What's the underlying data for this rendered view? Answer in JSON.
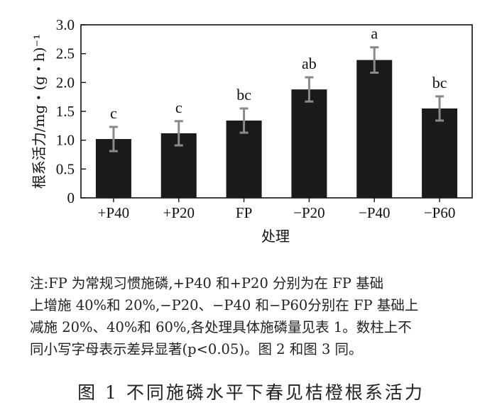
{
  "chart_data": {
    "type": "bar",
    "title": "",
    "xlabel": "处理",
    "ylabel": "根系活力/mg・(g・h)⁻¹",
    "ylim": [
      0,
      3.0
    ],
    "yticks": [
      "0",
      "0.5",
      "1.0",
      "1.5",
      "2.0",
      "2.5",
      "3.0"
    ],
    "categories": [
      "+P40",
      "+P20",
      "FP",
      "−P20",
      "−P40",
      "−P60"
    ],
    "values": [
      1.02,
      1.12,
      1.34,
      1.88,
      2.39,
      1.55
    ],
    "errors": [
      0.21,
      0.21,
      0.21,
      0.21,
      0.22,
      0.21
    ],
    "letters": [
      "c",
      "c",
      "bc",
      "ab",
      "a",
      "bc"
    ],
    "bar_color": "#1a1a1a",
    "error_color": "#8a8a8a"
  },
  "note": {
    "lines": [
      "注:FP 为常规习惯施磷,+P40 和+P20 分别为在 FP 基础",
      "上增施 40%和 20%,−P20、−P40 和−P60分别在 FP 基础上",
      "减施 20%、40%和 60%,各处理具体施磷量见表 1。数柱上不",
      "同小写字母表示差异显著(p<0.05)。图 2 和图 3 同。"
    ]
  },
  "caption": "图 1  不同施磷水平下春见桔橙根系活力"
}
